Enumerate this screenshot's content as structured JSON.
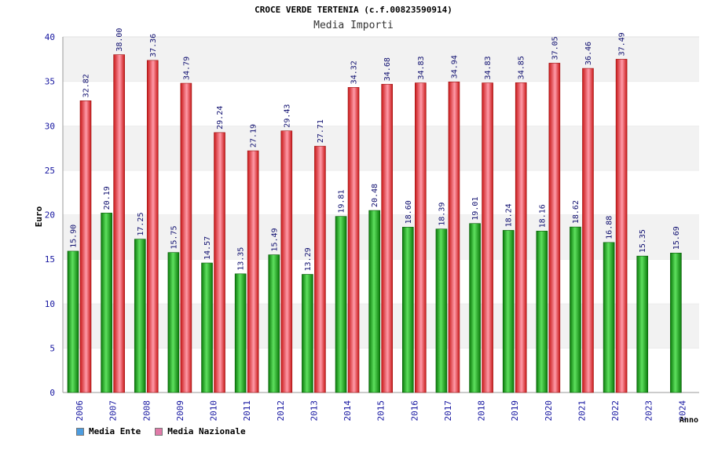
{
  "colors": {
    "ente_dark": "#0a7a0a",
    "ente_light": "#5ee05e",
    "naz_dark": "#c81818",
    "naz_light": "#ff9aa8",
    "legend_ente": "#4d9de0",
    "legend_naz": "#e07aa8",
    "axis_text": "#1515a0",
    "label_text": "#101070",
    "band": "#f2f2f2"
  },
  "chart_data": {
    "type": "bar",
    "title": "CROCE VERDE TERTENIA (c.f.00823590914)",
    "subtitle": "Media Importi",
    "xlabel": "Anno",
    "ylabel": "Euro",
    "ylim": [
      0,
      40
    ],
    "yticks": [
      "0",
      "5",
      "10",
      "15",
      "20",
      "25",
      "30",
      "35",
      "40"
    ],
    "categories": [
      "2006",
      "2007",
      "2008",
      "2009",
      "2010",
      "2011",
      "2012",
      "2013",
      "2014",
      "2015",
      "2016",
      "2017",
      "2018",
      "2019",
      "2020",
      "2021",
      "2022",
      "2023",
      "2024"
    ],
    "series": [
      {
        "name": "Media Ente",
        "values": [
          15.9,
          20.19,
          17.25,
          15.75,
          14.57,
          13.35,
          15.49,
          13.29,
          19.81,
          20.48,
          18.6,
          18.39,
          19.01,
          18.24,
          18.16,
          18.62,
          16.88,
          15.35,
          15.69
        ],
        "labels": [
          "15.90",
          "20.19",
          "17.25",
          "15.75",
          "14.57",
          "13.35",
          "15.49",
          "13.29",
          "19.81",
          "20.48",
          "18.60",
          "18.39",
          "19.01",
          "18.24",
          "18.16",
          "18.62",
          "16.88",
          "15.35",
          "15.69"
        ]
      },
      {
        "name": "Media Nazionale",
        "values": [
          32.82,
          38.0,
          37.36,
          34.79,
          29.24,
          27.19,
          29.43,
          27.71,
          34.32,
          34.68,
          34.83,
          34.94,
          34.83,
          34.85,
          37.05,
          36.46,
          37.49,
          null,
          null
        ],
        "labels": [
          "32.82",
          "38.00",
          "37.36",
          "34.79",
          "29.24",
          "27.19",
          "29.43",
          "27.71",
          "34.32",
          "34.68",
          "34.83",
          "34.94",
          "34.83",
          "34.85",
          "37.05",
          "36.46",
          "37.49",
          "",
          ""
        ]
      }
    ],
    "legend_position": "bottom-left"
  }
}
